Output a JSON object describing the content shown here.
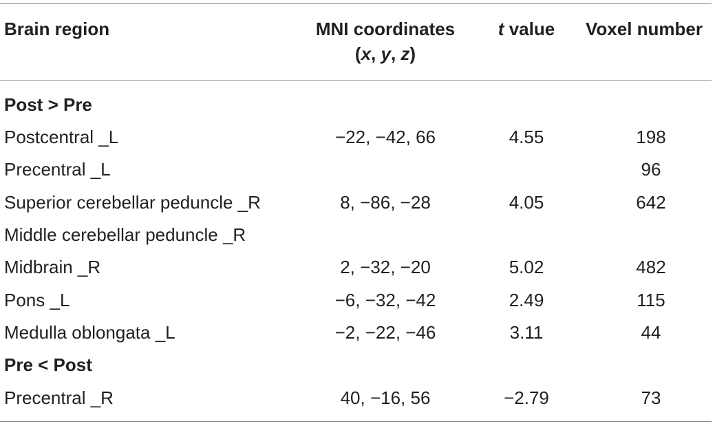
{
  "table": {
    "headers": {
      "region": "Brain region",
      "mni_line1": "MNI coordinates",
      "mni_line2_open": "(",
      "mni_x": "x",
      "mni_sep1": ", ",
      "mni_y": "y",
      "mni_sep2": ", ",
      "mni_z": "z",
      "mni_line2_close": ")",
      "t_italic": "t",
      "t_rest": " value",
      "voxel": "Voxel number"
    },
    "rows": [
      {
        "region": "Post > Pre",
        "coords": "",
        "t": "",
        "voxels": ""
      },
      {
        "region": "Postcentral _L",
        "coords": "−22, −42, 66",
        "t": "4.55",
        "voxels": "198"
      },
      {
        "region": "Precentral _L",
        "coords": "",
        "t": "",
        "voxels": "96"
      },
      {
        "region": "Superior cerebellar peduncle _R",
        "coords": "8, −86, −28",
        "t": "4.05",
        "voxels": "642"
      },
      {
        "region": "Middle cerebellar peduncle _R",
        "coords": "",
        "t": "",
        "voxels": ""
      },
      {
        "region": "Midbrain _R",
        "coords": "2, −32, −20",
        "t": "5.02",
        "voxels": "482"
      },
      {
        "region": "Pons _L",
        "coords": "−6, −32, −42",
        "t": "2.49",
        "voxels": "115"
      },
      {
        "region": "Medulla oblongata _L",
        "coords": "−2, −22, −46",
        "t": "3.11",
        "voxels": "44"
      },
      {
        "region": "Pre < Post",
        "coords": "",
        "t": "",
        "voxels": ""
      },
      {
        "region": "Precentral _R",
        "coords": "40, −16, 56",
        "t": "−2.79",
        "voxels": "73"
      }
    ]
  }
}
